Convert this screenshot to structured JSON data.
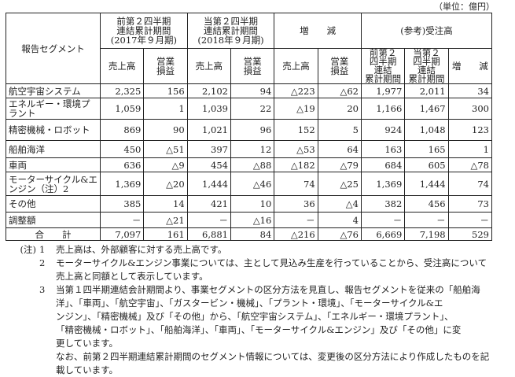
{
  "unit": "（単位：億円）",
  "header": {
    "segment": "報告セグメント",
    "prev": [
      "前第２四半期",
      "連結累計期間",
      "(2017年９月期)"
    ],
    "curr": [
      "当第２四半期",
      "連結累計期間",
      "(2018年９月期)"
    ],
    "change": "増　　減",
    "orders": "(参考)受注高",
    "sales": "売上高",
    "op": [
      "営業",
      "損益"
    ],
    "ord_prev": [
      "前第２",
      "四半期",
      "連結",
      "累計期間"
    ],
    "ord_curr": [
      "当第２",
      "四半期",
      "連結",
      "累計期間"
    ],
    "ord_change": "増　　減"
  },
  "rows": [
    {
      "name": "航空宇宙システム",
      "v": [
        "2,325",
        "156",
        "2,102",
        "94",
        "△223",
        "△62",
        "1,977",
        "2,011",
        "34"
      ]
    },
    {
      "name": "エネルギー・環境プラント",
      "v": [
        "1,059",
        "1",
        "1,039",
        "22",
        "△19",
        "20",
        "1,166",
        "1,467",
        "300"
      ]
    },
    {
      "name": "精密機械・ロボット",
      "v": [
        "869",
        "90",
        "1,021",
        "96",
        "152",
        "5",
        "924",
        "1,048",
        "123"
      ]
    },
    {
      "name": "船舶海洋",
      "v": [
        "450",
        "△51",
        "397",
        "12",
        "△53",
        "64",
        "163",
        "165",
        "1"
      ]
    },
    {
      "name": "車両",
      "v": [
        "636",
        "△9",
        "454",
        "△88",
        "△182",
        "△79",
        "684",
        "605",
        "△78"
      ]
    },
    {
      "name": "モーターサイクル&エンジン（注）2",
      "v": [
        "1,369",
        "△20",
        "1,444",
        "△46",
        "74",
        "△25",
        "1,369",
        "1,444",
        "74"
      ]
    },
    {
      "name": "その他",
      "v": [
        "385",
        "14",
        "421",
        "10",
        "36",
        "△4",
        "382",
        "456",
        "73"
      ]
    },
    {
      "name": "調整額",
      "v": [
        "－",
        "△21",
        "－",
        "△16",
        "－",
        "4",
        "－",
        "－",
        "－"
      ]
    },
    {
      "name": "合　　計",
      "v": [
        "7,097",
        "161",
        "6,881",
        "84",
        "△216",
        "△76",
        "6,669",
        "7,198",
        "529"
      ]
    }
  ],
  "notes": {
    "label": "(注)",
    "items": [
      {
        "no": "1",
        "lines": [
          "売上高は、外部顧客に対する売上高です。"
        ]
      },
      {
        "no": "2",
        "lines": [
          "モーターサイクル&エンジン事業については、主として見込み生産を行っていることから、受注高について",
          "売上高と同額として表示しています。"
        ]
      },
      {
        "no": "3",
        "lines": [
          "当第１四半期連結会計期間より、事業セグメントの区分方法を見直し、報告セグメントを従来の「船舶海",
          "洋」、「車両」、「航空宇宙」、「ガスタービン・機械」、「プラント・環境」、「モーターサイクル&エ",
          "ンジン」、「精密機械」及び「その他」から、「航空宇宙システム」、「エネルギー・環境プラント」、",
          "「精密機械・ロボット」、「船舶海洋」、「車両」、「モーターサイクル&エンジン」及び「その他」に変",
          "更しています。",
          "なお、前第２四半期連結累計期間のセグメント情報については、変更後の区分方法により作成したものを記",
          "載しています。"
        ]
      }
    ]
  }
}
